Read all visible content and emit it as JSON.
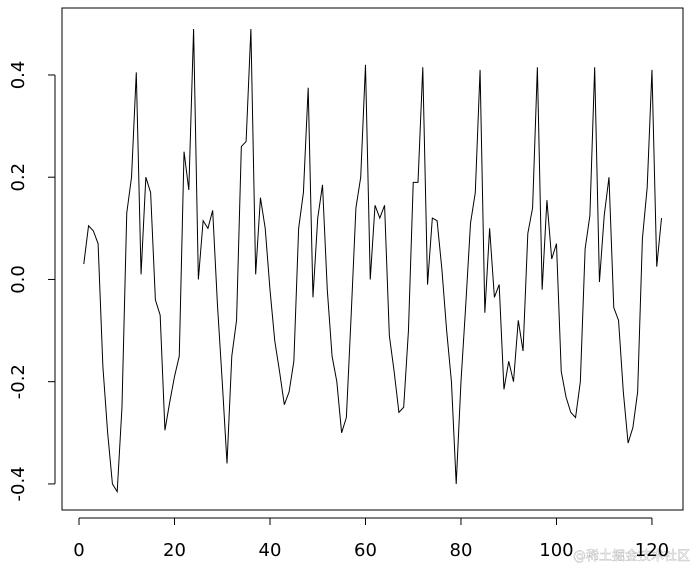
{
  "chart_data": {
    "type": "line",
    "x": [
      1,
      2,
      3,
      4,
      5,
      6,
      7,
      8,
      9,
      10,
      11,
      12,
      13,
      14,
      15,
      16,
      17,
      18,
      19,
      20,
      21,
      22,
      23,
      24,
      25,
      26,
      27,
      28,
      29,
      30,
      31,
      32,
      33,
      34,
      35,
      36,
      37,
      38,
      39,
      40,
      41,
      42,
      43,
      44,
      45,
      46,
      47,
      48,
      49,
      50,
      51,
      52,
      53,
      54,
      55,
      56,
      57,
      58,
      59,
      60,
      61,
      62,
      63,
      64,
      65,
      66,
      67,
      68,
      69,
      70,
      71,
      72,
      73,
      74,
      75,
      76,
      77,
      78,
      79,
      80,
      81,
      82,
      83,
      84,
      85,
      86,
      87,
      88,
      89,
      90,
      91,
      92,
      93,
      94,
      95,
      96,
      97,
      98,
      99,
      100,
      101,
      102,
      103,
      104,
      105,
      106,
      107,
      108,
      109,
      110,
      111,
      112,
      113,
      114,
      115,
      116,
      117,
      118,
      119,
      120,
      121,
      122
    ],
    "values": [
      0.03,
      0.105,
      0.095,
      0.07,
      -0.17,
      -0.3,
      -0.4,
      -0.415,
      -0.25,
      0.13,
      0.2,
      0.405,
      0.01,
      0.2,
      0.17,
      -0.04,
      -0.07,
      -0.295,
      -0.24,
      -0.19,
      -0.15,
      0.25,
      0.175,
      0.49,
      0.0,
      0.115,
      0.1,
      0.135,
      -0.05,
      -0.2,
      -0.36,
      -0.15,
      -0.08,
      0.26,
      0.27,
      0.49,
      0.01,
      0.16,
      0.1,
      -0.02,
      -0.12,
      -0.18,
      -0.245,
      -0.22,
      -0.16,
      0.1,
      0.17,
      0.375,
      -0.035,
      0.12,
      0.185,
      -0.02,
      -0.15,
      -0.2,
      -0.3,
      -0.27,
      -0.07,
      0.14,
      0.2,
      0.42,
      0.0,
      0.145,
      0.12,
      0.145,
      -0.11,
      -0.18,
      -0.26,
      -0.25,
      -0.1,
      0.19,
      0.19,
      0.415,
      -0.01,
      0.12,
      0.115,
      0.02,
      -0.1,
      -0.2,
      -0.4,
      -0.2,
      -0.05,
      0.11,
      0.17,
      0.41,
      -0.065,
      0.1,
      -0.035,
      -0.01,
      -0.215,
      -0.16,
      -0.2,
      -0.08,
      -0.14,
      0.09,
      0.14,
      0.415,
      -0.02,
      0.155,
      0.04,
      0.07,
      -0.18,
      -0.23,
      -0.26,
      -0.27,
      -0.2,
      0.06,
      0.125,
      0.415,
      -0.005,
      0.125,
      0.2,
      -0.055,
      -0.08,
      -0.22,
      -0.32,
      -0.29,
      -0.22,
      0.08,
      0.18,
      0.41,
      0.025,
      0.12
    ],
    "color": "#000000",
    "xlim": [
      -3.56,
      126.5
    ],
    "xticks": [
      0,
      20,
      40,
      60,
      80,
      100,
      120
    ],
    "ylim": [
      -0.451,
      0.531
    ],
    "yticks": [
      -0.4,
      -0.2,
      {
        "value": 0,
        "label": "0.0"
      },
      0.2,
      0.4
    ],
    "watermark": "@稀土掘金技术社区"
  }
}
